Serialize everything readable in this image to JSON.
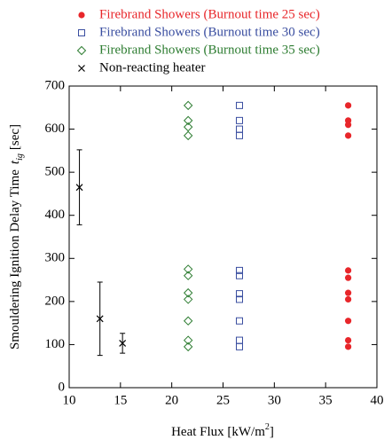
{
  "chart_data": {
    "type": "scatter",
    "xlabel": "Heat Flux [kW/m",
    "xlabel_sup": "2",
    "xlabel_end": "]",
    "ylabel": "Smouldering Ignition Delay Time",
    "ylabel_var": "t",
    "ylabel_sub": "ig",
    "ylabel_unit": "[sec]",
    "xlim": [
      10,
      40
    ],
    "xticks": [
      10,
      15,
      20,
      25,
      30,
      35,
      40
    ],
    "ylim": [
      0,
      700
    ],
    "yticks": [
      0,
      100,
      200,
      300,
      400,
      500,
      600,
      700
    ],
    "series": [
      {
        "name": "Firebrand Showers (Burnout time 25 sec)",
        "color": "#e8262a",
        "marker": "circle",
        "x": [
          37.2,
          37.2,
          37.2,
          37.2,
          37.2,
          37.2,
          37.2,
          37.2,
          37.2,
          37.2,
          37.2
        ],
        "values": [
          655,
          620,
          610,
          585,
          272,
          255,
          220,
          205,
          155,
          110,
          95
        ]
      },
      {
        "name": "Firebrand Showers (Burnout time 30 sec)",
        "color": "#3a4ea0",
        "marker": "square",
        "x": [
          26.6,
          26.6,
          26.6,
          26.6,
          26.6,
          26.6,
          26.6,
          26.6,
          26.6,
          26.6,
          26.6
        ],
        "values": [
          655,
          620,
          600,
          585,
          272,
          260,
          218,
          205,
          155,
          110,
          95
        ]
      },
      {
        "name": "Firebrand Showers (Burnout time 35 sec)",
        "color": "#2e7d32",
        "marker": "diamond",
        "x": [
          21.6,
          21.6,
          21.6,
          21.6,
          21.6,
          21.6,
          21.6,
          21.6,
          21.6,
          21.6,
          21.6
        ],
        "values": [
          655,
          620,
          605,
          585,
          275,
          260,
          220,
          205,
          155,
          110,
          95
        ]
      },
      {
        "name": "Non-reacting heater",
        "color": "#000000",
        "marker": "cross",
        "x": [
          11,
          13,
          15.2
        ],
        "values": [
          465,
          160,
          103
        ],
        "errors": [
          87,
          85,
          23
        ]
      }
    ]
  }
}
